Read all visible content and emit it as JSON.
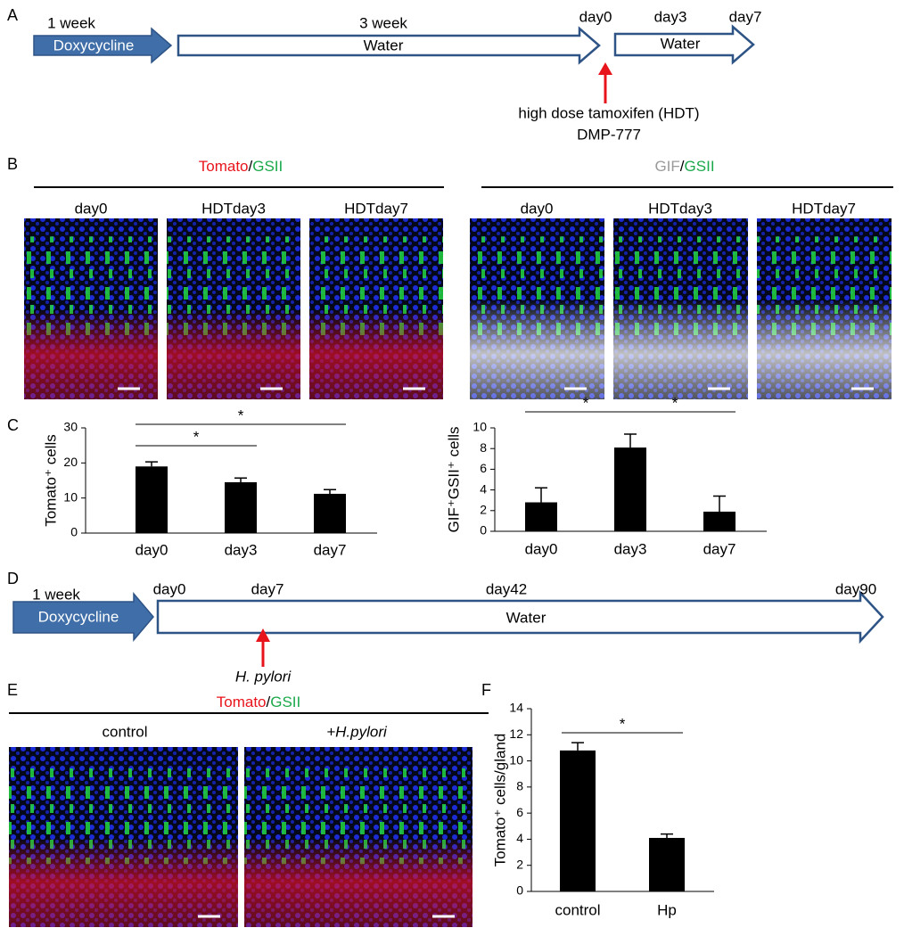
{
  "panel_labels": [
    "A",
    "B",
    "C",
    "D",
    "E",
    "F"
  ],
  "timeline_a": {
    "steps": [
      {
        "duration": "1 week",
        "label": "Doxycycline"
      },
      {
        "duration": "3 week",
        "label": "Water"
      }
    ],
    "days": [
      "day0",
      "day3",
      "day7"
    ],
    "after": "Water",
    "treatment": [
      "high dose tamoxifen (HDT)",
      "DMP-777"
    ]
  },
  "panel_b": {
    "groups": [
      {
        "title": [
          {
            "text": "Tomato",
            "color": "#e8141b"
          },
          {
            "text": "/",
            "color": "#000000"
          },
          {
            "text": "GSII",
            "color": "#1aa84a"
          }
        ],
        "images": [
          "day0",
          "HDTday3",
          "HDTday7"
        ]
      },
      {
        "title": [
          {
            "text": "GIF",
            "color": "#9a9a9a"
          },
          {
            "text": "/",
            "color": "#000000"
          },
          {
            "text": "GSII",
            "color": "#1aa84a"
          }
        ],
        "images": [
          "day0",
          "HDTday3",
          "HDTday7"
        ]
      }
    ]
  },
  "timeline_d": {
    "duration": "1 week",
    "label": "Doxycycline",
    "days": [
      "day0",
      "day7",
      "day42",
      "day90"
    ],
    "after": "Water",
    "treatment": "H. pylori"
  },
  "panel_e": {
    "title": [
      {
        "text": "Tomato",
        "color": "#e8141b"
      },
      {
        "text": "/",
        "color": "#000000"
      },
      {
        "text": "GSII",
        "color": "#1aa84a"
      }
    ],
    "images": [
      "control",
      "+H.pylori"
    ]
  },
  "chart_data": [
    {
      "type": "bar",
      "ylabel": "Tomato⁺ cells",
      "categories": [
        "day0",
        "day3",
        "day7"
      ],
      "values": [
        19,
        14.5,
        11.2
      ],
      "errors": [
        1.3,
        1.2,
        1.2
      ],
      "color": "#000000",
      "ylim": [
        0,
        30
      ],
      "yticks": [
        0,
        10,
        20,
        30
      ],
      "significance": [
        {
          "pair": [
            "day0",
            "day3"
          ],
          "label": "*"
        },
        {
          "pair": [
            "day0",
            "day7"
          ],
          "label": "*"
        }
      ]
    },
    {
      "type": "bar",
      "ylabel": "GIF⁺GSII⁺ cells",
      "categories": [
        "day0",
        "day3",
        "day7"
      ],
      "values": [
        2.8,
        8.1,
        1.9
      ],
      "errors": [
        1.4,
        1.3,
        1.5
      ],
      "color": "#000000",
      "ylim": [
        0,
        10
      ],
      "yticks": [
        0,
        2,
        4,
        6,
        8,
        10
      ],
      "significance": [
        {
          "pair": [
            "day0",
            "day3"
          ],
          "label": "*"
        },
        {
          "pair": [
            "day3",
            "day7"
          ],
          "label": "*"
        }
      ]
    },
    {
      "type": "bar",
      "ylabel": "Tomato⁺ cells/gland",
      "categories": [
        "control",
        "Hp"
      ],
      "values": [
        10.8,
        4.1
      ],
      "errors": [
        0.6,
        0.3
      ],
      "color": "#000000",
      "ylim": [
        0,
        14
      ],
      "yticks": [
        0,
        2,
        4,
        6,
        8,
        10,
        12,
        14
      ],
      "significance": [
        {
          "pair": [
            "control",
            "Hp"
          ],
          "label": "*"
        }
      ]
    }
  ]
}
